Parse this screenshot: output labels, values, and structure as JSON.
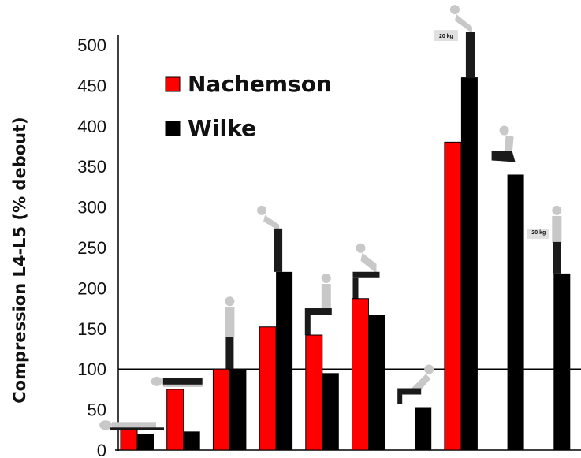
{
  "chart_data": {
    "type": "bar",
    "ylabel": "Compression L4-L5 (% debout)",
    "ylim": [
      0,
      500
    ],
    "yticks": [
      0,
      50,
      100,
      150,
      200,
      250,
      300,
      350,
      400,
      450,
      500
    ],
    "reference_line": 100,
    "grid": false,
    "legend": "top-left",
    "categories": [
      "lying",
      "lying on side",
      "standing",
      "standing bent forward",
      "sitting upright",
      "sitting bent forward",
      "sitting relaxed",
      "bent forward lifting 20 kg",
      "lifting from floor",
      "standing holding 20 kg"
    ],
    "series": [
      {
        "name": "Nachemson",
        "color": "#ff0000",
        "values": [
          25,
          75,
          100,
          152,
          142,
          187,
          null,
          380,
          null,
          null
        ]
      },
      {
        "name": "Wilke",
        "color": "#000000",
        "values": [
          20,
          23,
          100,
          220,
          95,
          167,
          53,
          460,
          340,
          218
        ]
      }
    ],
    "figure_annotations": [
      {
        "category": 7,
        "text": "20 kg"
      },
      {
        "category": 9,
        "text": "20 kg"
      }
    ]
  }
}
